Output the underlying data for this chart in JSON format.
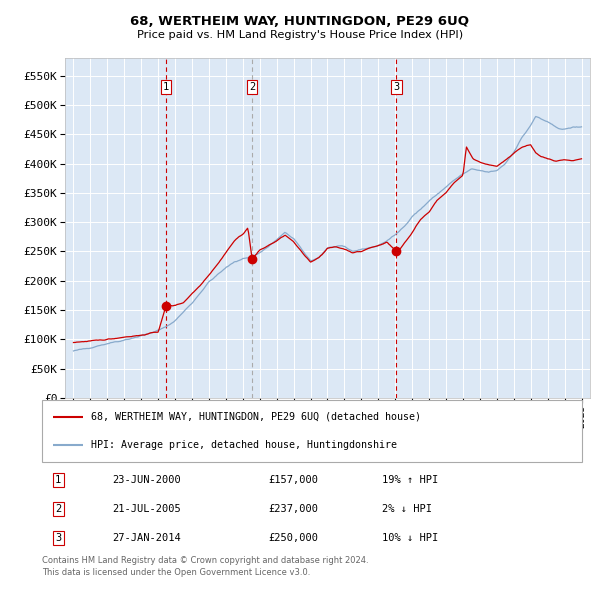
{
  "title": "68, WERTHEIM WAY, HUNTINGDON, PE29 6UQ",
  "subtitle": "Price paid vs. HM Land Registry's House Price Index (HPI)",
  "legend_line1": "68, WERTHEIM WAY, HUNTINGDON, PE29 6UQ (detached house)",
  "legend_line2": "HPI: Average price, detached house, Huntingdonshire",
  "footer1": "Contains HM Land Registry data © Crown copyright and database right 2024.",
  "footer2": "This data is licensed under the Open Government Licence v3.0.",
  "transactions": [
    {
      "num": 1,
      "date": "23-JUN-2000",
      "price": 157000,
      "pct": "19%",
      "dir": "↑",
      "year": 2000.47
    },
    {
      "num": 2,
      "date": "21-JUL-2005",
      "price": 237000,
      "pct": "2%",
      "dir": "↓",
      "year": 2005.55
    },
    {
      "num": 3,
      "date": "27-JAN-2014",
      "price": 250000,
      "pct": "10%",
      "dir": "↓",
      "year": 2014.07
    }
  ],
  "red_dot_color": "#cc0000",
  "hpi_line_color": "#88aacc",
  "price_line_color": "#cc0000",
  "bg_color": "#dce8f5",
  "grid_color": "#ffffff",
  "ylim": [
    0,
    580000
  ],
  "yticks": [
    0,
    50000,
    100000,
    150000,
    200000,
    250000,
    300000,
    350000,
    400000,
    450000,
    500000,
    550000
  ],
  "xlim_start": 1994.5,
  "xlim_end": 2025.5,
  "hpi_anchors": [
    [
      1995.0,
      80000
    ],
    [
      1996.0,
      86000
    ],
    [
      1997.0,
      93000
    ],
    [
      1998.0,
      99000
    ],
    [
      1999.0,
      106000
    ],
    [
      2000.0,
      115000
    ],
    [
      2000.5,
      122000
    ],
    [
      2001.0,
      132000
    ],
    [
      2002.0,
      162000
    ],
    [
      2003.0,
      198000
    ],
    [
      2004.0,
      222000
    ],
    [
      2004.5,
      232000
    ],
    [
      2005.0,
      238000
    ],
    [
      2005.5,
      240000
    ],
    [
      2006.0,
      248000
    ],
    [
      2006.5,
      258000
    ],
    [
      2007.0,
      270000
    ],
    [
      2007.5,
      282000
    ],
    [
      2008.0,
      272000
    ],
    [
      2008.5,
      252000
    ],
    [
      2009.0,
      234000
    ],
    [
      2009.5,
      240000
    ],
    [
      2010.0,
      256000
    ],
    [
      2010.5,
      258000
    ],
    [
      2011.0,
      258000
    ],
    [
      2011.5,
      250000
    ],
    [
      2012.0,
      254000
    ],
    [
      2012.5,
      256000
    ],
    [
      2013.0,
      260000
    ],
    [
      2013.5,
      268000
    ],
    [
      2014.0,
      278000
    ],
    [
      2014.5,
      292000
    ],
    [
      2015.0,
      310000
    ],
    [
      2015.5,
      322000
    ],
    [
      2016.0,
      336000
    ],
    [
      2016.5,
      348000
    ],
    [
      2017.0,
      360000
    ],
    [
      2017.5,
      372000
    ],
    [
      2018.0,
      382000
    ],
    [
      2018.5,
      390000
    ],
    [
      2019.0,
      388000
    ],
    [
      2019.5,
      385000
    ],
    [
      2020.0,
      388000
    ],
    [
      2020.5,
      400000
    ],
    [
      2021.0,
      420000
    ],
    [
      2021.5,
      445000
    ],
    [
      2022.0,
      465000
    ],
    [
      2022.3,
      480000
    ],
    [
      2022.5,
      478000
    ],
    [
      2023.0,
      470000
    ],
    [
      2023.5,
      462000
    ],
    [
      2024.0,
      458000
    ],
    [
      2024.5,
      462000
    ],
    [
      2025.0,
      462000
    ]
  ],
  "price_anchors": [
    [
      1995.0,
      95000
    ],
    [
      1996.0,
      97000
    ],
    [
      1997.0,
      100000
    ],
    [
      1998.0,
      104000
    ],
    [
      1999.0,
      107000
    ],
    [
      2000.0,
      113000
    ],
    [
      2000.47,
      157000
    ],
    [
      2001.0,
      158000
    ],
    [
      2001.5,
      163000
    ],
    [
      2002.0,
      178000
    ],
    [
      2002.5,
      193000
    ],
    [
      2003.0,
      210000
    ],
    [
      2003.5,
      228000
    ],
    [
      2004.0,
      248000
    ],
    [
      2004.5,
      268000
    ],
    [
      2005.0,
      280000
    ],
    [
      2005.3,
      290000
    ],
    [
      2005.55,
      237000
    ],
    [
      2005.7,
      242000
    ],
    [
      2006.0,
      252000
    ],
    [
      2006.5,
      260000
    ],
    [
      2007.0,
      268000
    ],
    [
      2007.5,
      278000
    ],
    [
      2008.0,
      266000
    ],
    [
      2008.5,
      248000
    ],
    [
      2009.0,
      232000
    ],
    [
      2009.5,
      240000
    ],
    [
      2010.0,
      255000
    ],
    [
      2010.5,
      258000
    ],
    [
      2011.0,
      254000
    ],
    [
      2011.5,
      248000
    ],
    [
      2012.0,
      250000
    ],
    [
      2012.5,
      256000
    ],
    [
      2013.0,
      260000
    ],
    [
      2013.5,
      266000
    ],
    [
      2014.07,
      250000
    ],
    [
      2014.3,
      255000
    ],
    [
      2015.0,
      282000
    ],
    [
      2015.5,
      305000
    ],
    [
      2016.0,
      318000
    ],
    [
      2016.5,
      338000
    ],
    [
      2017.0,
      350000
    ],
    [
      2017.5,
      368000
    ],
    [
      2018.0,
      380000
    ],
    [
      2018.2,
      428000
    ],
    [
      2018.4,
      418000
    ],
    [
      2018.6,
      408000
    ],
    [
      2019.0,
      402000
    ],
    [
      2019.5,
      398000
    ],
    [
      2020.0,
      395000
    ],
    [
      2020.5,
      405000
    ],
    [
      2021.0,
      418000
    ],
    [
      2021.5,
      428000
    ],
    [
      2022.0,
      432000
    ],
    [
      2022.3,
      418000
    ],
    [
      2022.6,
      412000
    ],
    [
      2023.0,
      408000
    ],
    [
      2023.5,
      404000
    ],
    [
      2024.0,
      406000
    ],
    [
      2024.5,
      404000
    ],
    [
      2025.0,
      408000
    ]
  ]
}
